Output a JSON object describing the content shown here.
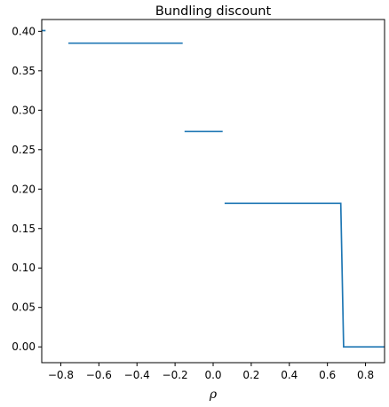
{
  "chart_data": {
    "type": "line",
    "title": "Bundling discount",
    "xlabel": "ρ",
    "ylabel": "",
    "xlim": [
      -0.9,
      0.9
    ],
    "ylim": [
      -0.02,
      0.415
    ],
    "xticks": [
      -0.8,
      -0.6,
      -0.4,
      -0.2,
      0.0,
      0.2,
      0.4,
      0.6,
      0.8
    ],
    "xtick_labels": [
      "−0.8",
      "−0.6",
      "−0.4",
      "−0.2",
      "0.0",
      "0.2",
      "0.4",
      "0.6",
      "0.8"
    ],
    "yticks": [
      0.0,
      0.05,
      0.1,
      0.15,
      0.2,
      0.25,
      0.3,
      0.35,
      0.4
    ],
    "ytick_labels": [
      "0.00",
      "0.05",
      "0.10",
      "0.15",
      "0.20",
      "0.25",
      "0.30",
      "0.35",
      "0.40"
    ],
    "grid": false,
    "line_color": "#1f77b4",
    "series": [
      {
        "segments": [
          [
            [
              -0.9,
              0.401
            ],
            [
              -0.88,
              0.401
            ]
          ],
          [
            [
              -0.76,
              0.385
            ],
            [
              -0.16,
              0.385
            ]
          ],
          [
            [
              -0.15,
              0.273
            ],
            [
              0.05,
              0.273
            ]
          ],
          [
            [
              0.06,
              0.182
            ],
            [
              0.67,
              0.182
            ],
            [
              0.685,
              0.0
            ],
            [
              0.9,
              0.0
            ]
          ]
        ]
      }
    ]
  }
}
